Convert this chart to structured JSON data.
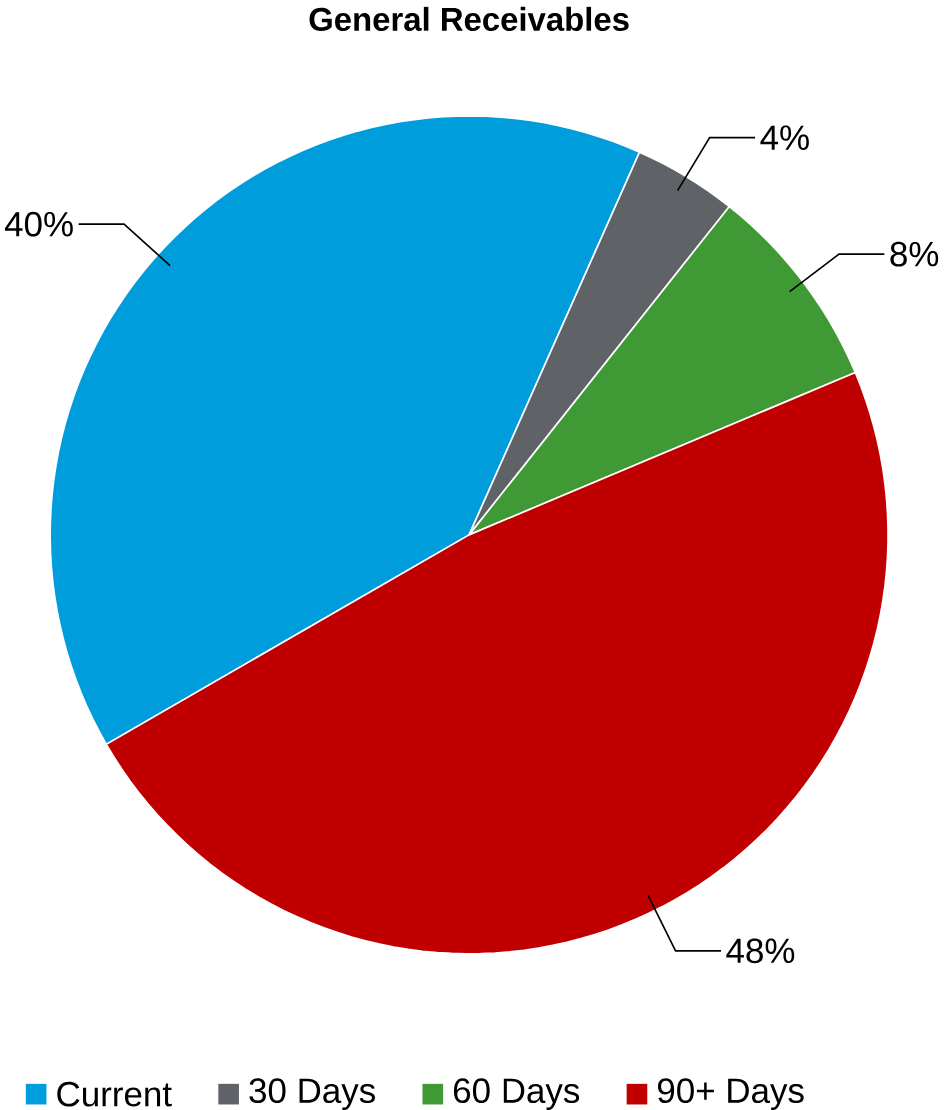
{
  "chart_data": {
    "type": "pie",
    "title": "General Receivables",
    "categories": [
      "Current",
      "30 Days",
      "60 Days",
      "90+ Days"
    ],
    "values": [
      40,
      4,
      8,
      48
    ],
    "value_labels": [
      "40%",
      "4%",
      "8%",
      "48%"
    ],
    "colors": [
      "#009ddc",
      "#5f6368",
      "#3f9a35",
      "#c00000"
    ],
    "legend": "bottom"
  }
}
